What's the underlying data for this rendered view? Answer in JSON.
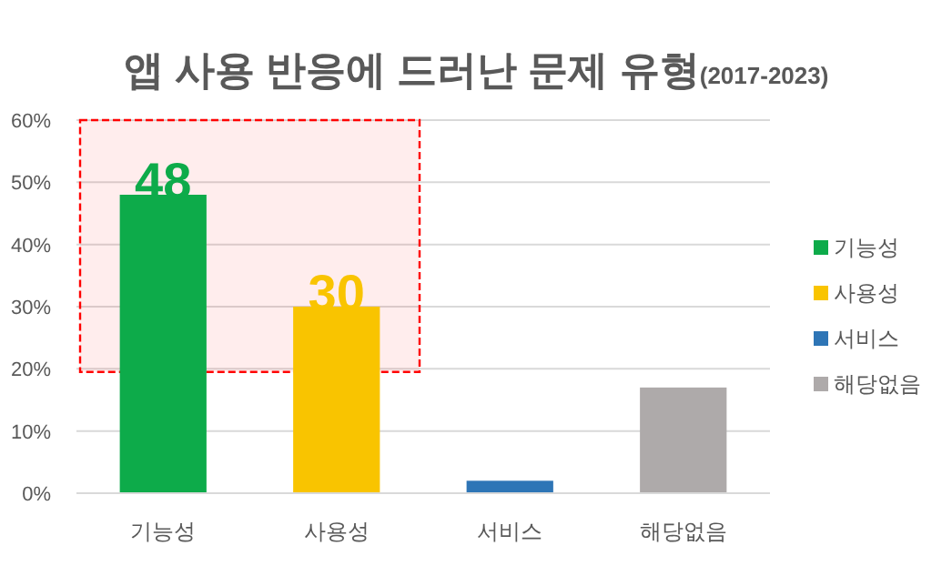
{
  "chart_data": {
    "type": "bar",
    "title": "앱 사용 반응에 드러난 문제 유형",
    "subtitle": "(2017-2023)",
    "categories": [
      "기능성",
      "사용성",
      "서비스",
      "해당없음"
    ],
    "series": [
      {
        "name": "기능성",
        "color": "#0dab4a",
        "values": [
          48,
          null,
          null,
          null
        ],
        "value_labels": [
          "48",
          null,
          null,
          null
        ]
      },
      {
        "name": "사용성",
        "color": "#f9c400",
        "values": [
          null,
          30,
          null,
          null
        ],
        "value_labels": [
          null,
          "30",
          null,
          null
        ]
      },
      {
        "name": "서비스",
        "color": "#2e75b6",
        "values": [
          null,
          null,
          2,
          null
        ]
      },
      {
        "name": "해당없음",
        "color": "#aeaaaa",
        "values": [
          null,
          null,
          null,
          17
        ]
      }
    ],
    "ylim": [
      0,
      60
    ],
    "yticks": [
      {
        "value": 0,
        "label": "0%"
      },
      {
        "value": 10,
        "label": "10%"
      },
      {
        "value": 20,
        "label": "20%"
      },
      {
        "value": 30,
        "label": "30%"
      },
      {
        "value": 40,
        "label": "40%"
      },
      {
        "value": 50,
        "label": "50%"
      },
      {
        "value": 60,
        "label": "60%"
      }
    ],
    "bands": [
      {
        "axis": "y",
        "from": 19.5,
        "to": 60,
        "color": "#ff0000"
      }
    ],
    "grid": "y",
    "legend": "right"
  }
}
